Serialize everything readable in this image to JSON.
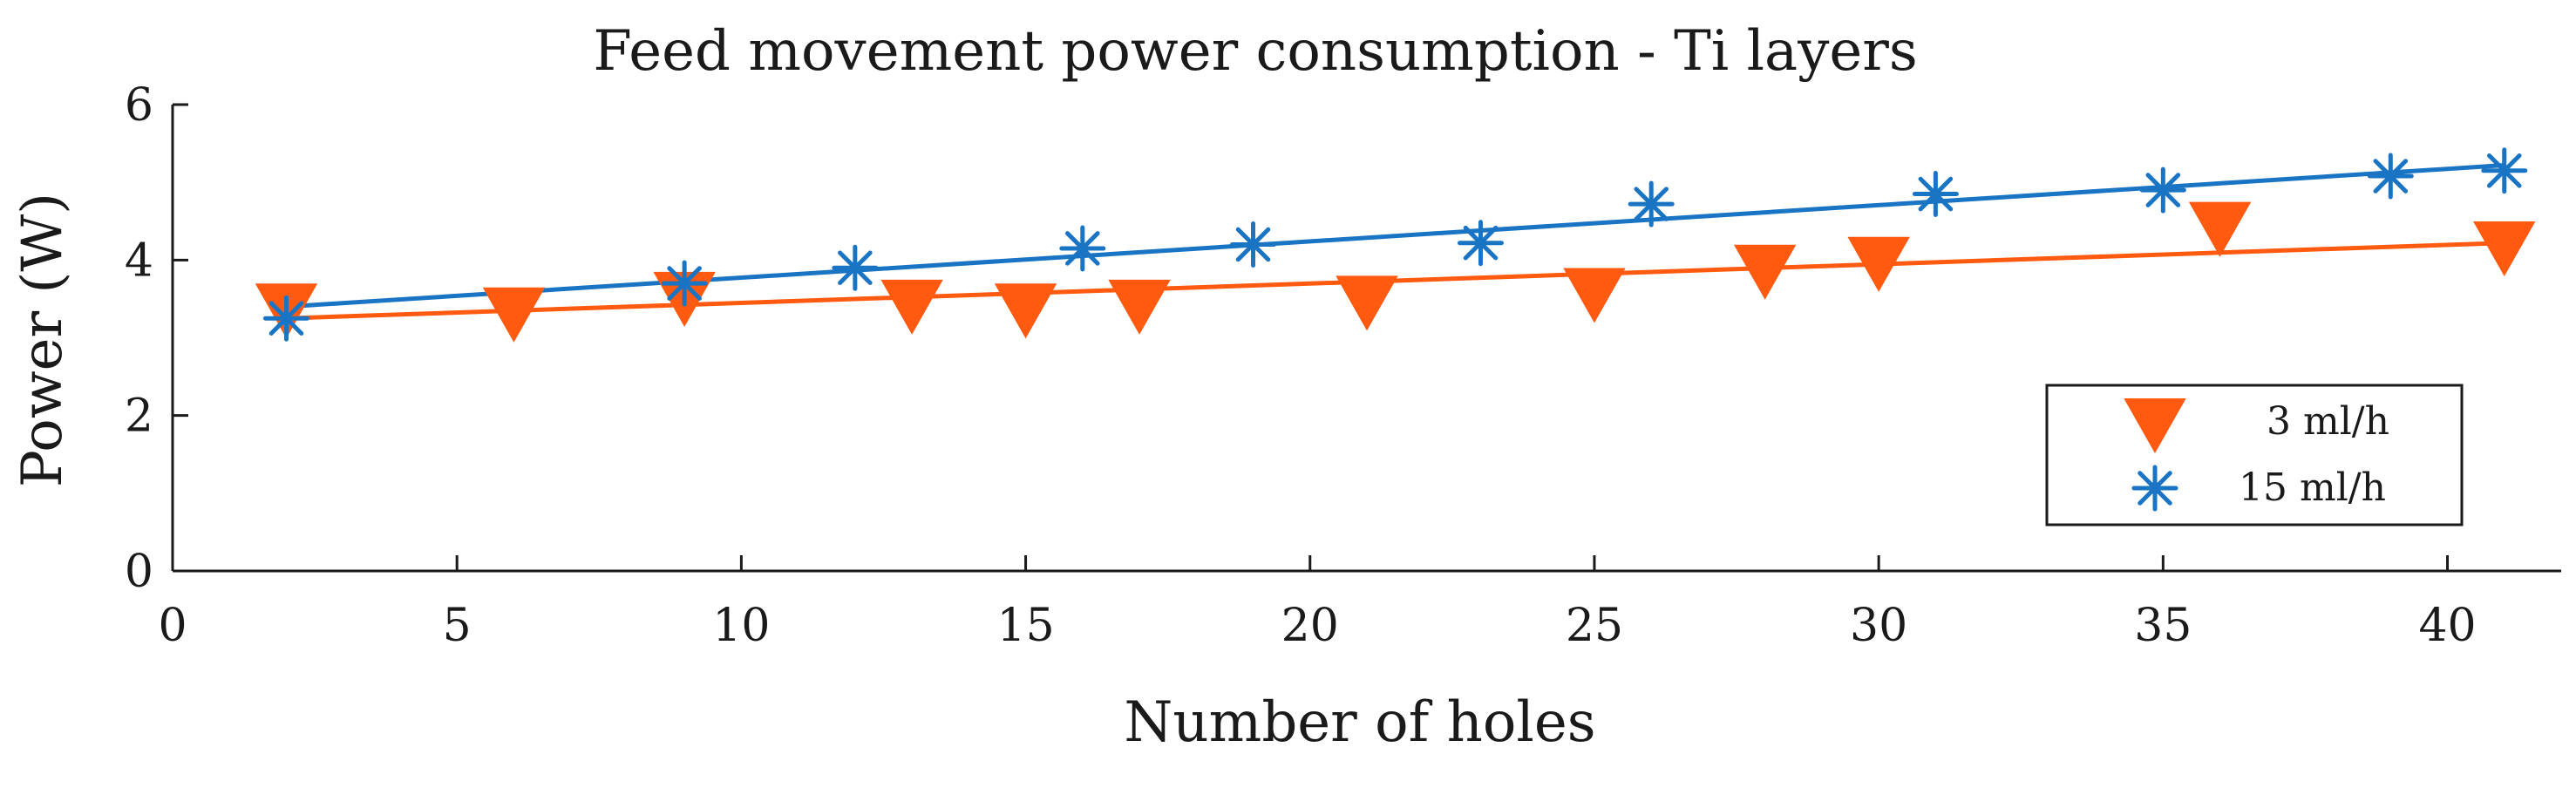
{
  "colors": {
    "series_3ml": "#ff5a10",
    "series_15ml": "#1a74c4",
    "axis": "#1a1a1a"
  },
  "chart_data": {
    "type": "scatter",
    "title": "Feed movement power consumption - Ti layers",
    "xlabel": "Number of holes",
    "ylabel": "Power (W)",
    "xlim": [
      0,
      42
    ],
    "ylim": [
      0,
      6
    ],
    "xticks": [
      0,
      5,
      10,
      15,
      20,
      25,
      30,
      35,
      40
    ],
    "yticks": [
      0,
      2,
      4,
      6
    ],
    "grid": false,
    "legend_position": "bottom-right",
    "series": [
      {
        "name": "3 ml/h",
        "marker": "triangle-down",
        "x": [
          2,
          6,
          9,
          13,
          15,
          17,
          21,
          25,
          28,
          30,
          36,
          41
        ],
        "y": [
          3.35,
          3.3,
          3.5,
          3.4,
          3.35,
          3.4,
          3.45,
          3.55,
          3.85,
          3.95,
          4.4,
          4.15
        ],
        "fit": {
          "x": [
            2,
            41
          ],
          "y": [
            3.25,
            4.22
          ]
        }
      },
      {
        "name": "15 ml/h",
        "marker": "asterisk",
        "x": [
          2,
          9,
          12,
          16,
          19,
          23,
          26,
          31,
          35,
          39,
          41
        ],
        "y": [
          3.25,
          3.7,
          3.9,
          4.15,
          4.2,
          4.22,
          4.72,
          4.85,
          4.9,
          5.08,
          5.15
        ],
        "fit": {
          "x": [
            2,
            41
          ],
          "y": [
            3.4,
            5.22
          ]
        }
      }
    ]
  }
}
